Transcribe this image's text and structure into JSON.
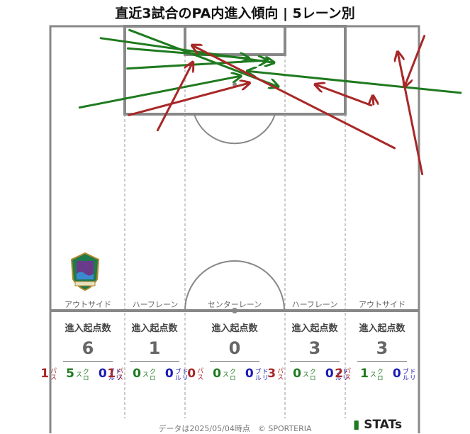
{
  "title": "直近3試合のPA内進入傾向 | 5レーン別",
  "lanes": [
    {
      "label": "アウトサイド",
      "head": "進入起点数",
      "total": "6",
      "pass": "1",
      "cross": "5",
      "dribble": "0"
    },
    {
      "label": "ハーフレーン",
      "head": "進入起点数",
      "total": "1",
      "pass": "1",
      "cross": "0",
      "dribble": "0"
    },
    {
      "label": "センターレーン",
      "head": "進入起点数",
      "total": "0",
      "pass": "0",
      "cross": "0",
      "dribble": "0"
    },
    {
      "label": "ハーフレーン",
      "head": "進入起点数",
      "total": "3",
      "pass": "3",
      "cross": "0",
      "dribble": "0"
    },
    {
      "label": "アウトサイド",
      "head": "進入起点数",
      "total": "3",
      "pass": "2",
      "cross": "1",
      "dribble": "0"
    }
  ],
  "breakdown_labels": {
    "pass": "パス",
    "cross": "クロス",
    "dribble": "ドリブル"
  },
  "colors": {
    "pass": "#a82828",
    "cross": "#1f7a1f",
    "dribble": "#1a1ab5",
    "pitch_line": "#888888"
  },
  "footer": "データは2025/05/04時点　© SPORTERIA",
  "brand": "STATs",
  "logo": {
    "icon": "club-crest-icon"
  },
  "chart_data": {
    "type": "arrow-map",
    "description_units": "pitch coordinates, x: 0-68 across width (left to right), y: 0-52.5 from goal line toward halfway",
    "arrows": [
      {
        "kind": "cross",
        "from": [
          5.4,
          15.0
        ],
        "to": [
          35.0,
          9.2
        ]
      },
      {
        "kind": "cross",
        "from": [
          14.2,
          7.8
        ],
        "to": [
          39.9,
          6.3
        ]
      },
      {
        "kind": "cross",
        "from": [
          9.3,
          2.2
        ],
        "to": [
          41.1,
          6.7
        ]
      },
      {
        "kind": "cross",
        "from": [
          14.6,
          0.7
        ],
        "to": [
          41.9,
          11.1
        ]
      },
      {
        "kind": "cross",
        "from": [
          14.3,
          4.1
        ],
        "to": [
          36.5,
          5.9
        ]
      },
      {
        "kind": "cross",
        "from": [
          75.7,
          12.3
        ],
        "to": [
          36.5,
          8.3
        ]
      },
      {
        "kind": "pass",
        "from": [
          19.8,
          19.2
        ],
        "to": [
          26.2,
          6.8
        ]
      },
      {
        "kind": "pass",
        "from": [
          14.5,
          16.4
        ],
        "to": [
          36.6,
          10.5
        ]
      },
      {
        "kind": "pass",
        "from": [
          63.5,
          22.5
        ],
        "to": [
          26.3,
          3.6
        ]
      },
      {
        "kind": "pass",
        "from": [
          59.2,
          14.6
        ],
        "to": [
          49.0,
          10.8
        ]
      },
      {
        "kind": "pass",
        "from": [
          59.6,
          14.4
        ],
        "to": [
          59.5,
          13.0
        ]
      },
      {
        "kind": "pass",
        "from": [
          68.6,
          27.3
        ],
        "to": [
          64.1,
          4.9
        ]
      },
      {
        "kind": "pass",
        "from": [
          69.0,
          1.8
        ],
        "to": [
          65.4,
          11.0
        ]
      }
    ]
  }
}
